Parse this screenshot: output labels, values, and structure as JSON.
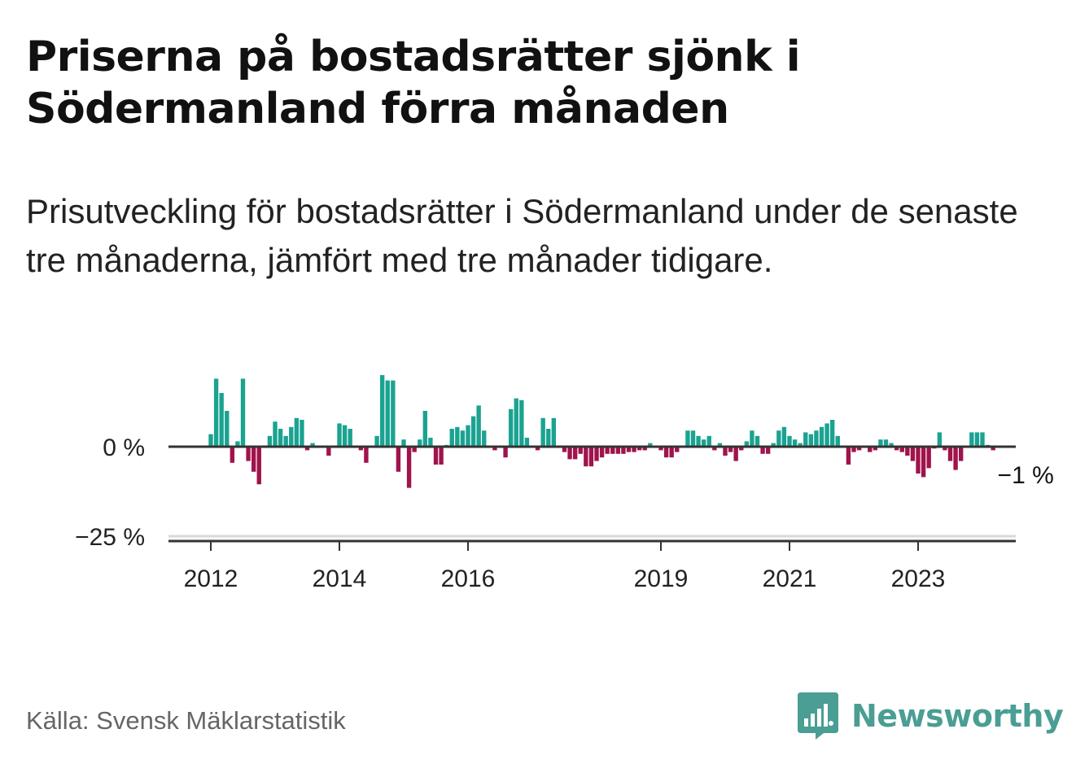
{
  "header": {
    "title": "Priserna på bostadsrätter sjönk i Södermanland förra månaden",
    "subtitle": "Prisutveckling för bostadsrätter i Södermanland under de senaste tre månaderna, jämfört med tre månader tidigare."
  },
  "footer": {
    "source": "Källa: Svensk Mäklarstatistik",
    "brand": "Newsworthy"
  },
  "colors": {
    "positive": "#1aa391",
    "negative": "#a0134c",
    "brand": "#4a9e93",
    "axis": "#333333",
    "grid": "#d9d9d9"
  },
  "icons": {
    "brand_logo": "bar-chart-speech-bubble-icon"
  },
  "chart_data": {
    "type": "bar",
    "title": "Priserna på bostadsrätter sjönk i Södermanland förra månaden",
    "ylabel": "",
    "xlabel": "",
    "ylim": [
      -27,
      20
    ],
    "y_ticks": [
      {
        "value": 0,
        "label": "0 %"
      },
      {
        "value": -25,
        "label": "−25 %"
      }
    ],
    "x_ticks": [
      {
        "year": 2012,
        "label": "2012"
      },
      {
        "year": 2014,
        "label": "2014"
      },
      {
        "year": 2016,
        "label": "2016"
      },
      {
        "year": 2019,
        "label": "2019"
      },
      {
        "year": 2021,
        "label": "2021"
      },
      {
        "year": 2023,
        "label": "2023"
      }
    ],
    "start": "2012-01",
    "unit": "%",
    "last_value_label": "−1 %",
    "values": [
      3.5,
      19,
      15,
      10,
      -4.5,
      1.5,
      19,
      -4,
      -7,
      -10.5,
      0,
      3,
      7,
      5,
      3,
      5.5,
      8,
      7.5,
      -1,
      1,
      0,
      0,
      -2.5,
      0,
      6.5,
      6,
      5,
      0,
      -1,
      -4.5,
      0,
      3,
      20,
      18.5,
      18.5,
      -7,
      2,
      -11.5,
      -1.5,
      2,
      10,
      2.5,
      -5,
      -5,
      0.5,
      5,
      5.5,
      4.5,
      6,
      8.5,
      11.5,
      4.5,
      0,
      -1,
      0,
      -3,
      10.5,
      13.5,
      13,
      2.5,
      0,
      -1,
      8,
      5,
      8,
      0,
      -1.5,
      -3.5,
      -3.5,
      -2,
      -5.5,
      -5.5,
      -4,
      -3,
      -2,
      -2,
      -2,
      -2,
      -1.5,
      -1.5,
      -1,
      -1,
      1,
      0,
      -1,
      -3,
      -3,
      -1.5,
      0,
      4.5,
      4.5,
      3,
      2,
      3,
      -1,
      1,
      -2.5,
      -1.5,
      -4,
      -1,
      1.5,
      4.5,
      3,
      -2,
      -2,
      1,
      4.5,
      5.5,
      3,
      2,
      1,
      4,
      3.5,
      4.5,
      5.5,
      6.5,
      7.5,
      3,
      0,
      -5,
      -1.5,
      -1,
      0,
      -1.5,
      -1,
      2,
      2,
      1,
      -1,
      -1.5,
      -2.5,
      -4,
      -7.5,
      -8.5,
      -6,
      -0.5,
      4,
      -1,
      -4,
      -6.5,
      -4,
      0,
      4,
      4,
      4,
      0.5,
      -1
    ]
  }
}
